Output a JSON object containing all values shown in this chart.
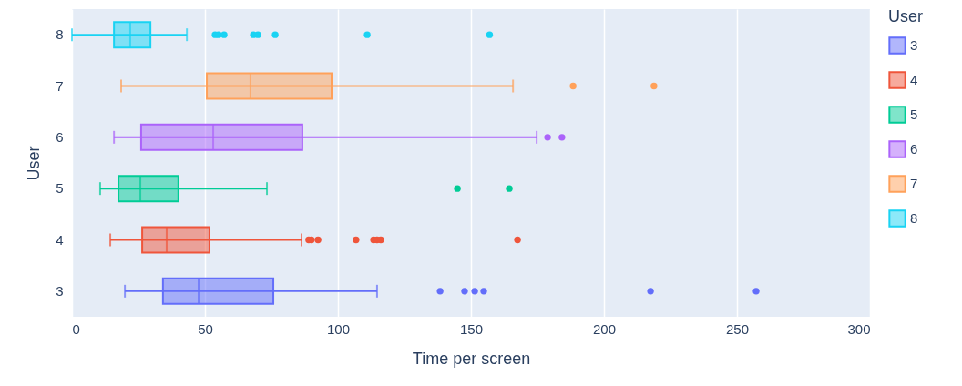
{
  "chart_data": {
    "type": "box",
    "orientation": "horizontal",
    "xlabel": "Time per screen",
    "ylabel": "User",
    "legend_title": "User",
    "legend": "right",
    "grid": "x",
    "categories": [
      "8",
      "7",
      "6",
      "5",
      "4",
      "3"
    ],
    "xlim": [
      0,
      300
    ],
    "xticks": [
      0,
      50,
      100,
      150,
      200,
      250,
      300
    ],
    "series": [
      {
        "name": "3",
        "color": "#636efa",
        "boxes": [
          null,
          null,
          null,
          null,
          null,
          {
            "low": 19.9,
            "q1": 34.2,
            "median": 47.6,
            "q3": 75.7,
            "high": 114.7,
            "outliers": [
              138.4,
              147.6,
              151.4,
              154.8,
              217.5,
              257.2
            ]
          }
        ]
      },
      {
        "name": "4",
        "color": "#ef553b",
        "boxes": [
          null,
          null,
          null,
          null,
          {
            "low": 14.4,
            "q1": 26.4,
            "median": 35.6,
            "q3": 51.7,
            "high": 86.3,
            "outliers": [
              89,
              90,
              92.5,
              106.8,
              113.4,
              114.7,
              116.1,
              167.5
            ]
          },
          null
        ]
      },
      {
        "name": "5",
        "color": "#00cc96",
        "boxes": [
          null,
          null,
          null,
          {
            "low": 10.6,
            "q1": 17.5,
            "median": 25.7,
            "q3": 40,
            "high": 73.3,
            "outliers": [
              144.9,
              164.4
            ]
          },
          null,
          null
        ]
      },
      {
        "name": "6",
        "color": "#ab63fa",
        "boxes": [
          null,
          null,
          {
            "low": 15.8,
            "q1": 26,
            "median": 53.1,
            "q3": 86.6,
            "high": 174.7,
            "outliers": [
              178.8,
              184.2
            ]
          },
          null,
          null,
          null
        ]
      },
      {
        "name": "7",
        "color": "#ffa15a",
        "boxes": [
          null,
          {
            "low": 18.5,
            "q1": 50.7,
            "median": 67.1,
            "q3": 97.6,
            "high": 165.8,
            "outliers": [
              188.4,
              218.8
            ]
          },
          null,
          null,
          null,
          null
        ]
      },
      {
        "name": "8",
        "color": "#19d3f3",
        "boxes": [
          {
            "low": 0,
            "q1": 15.8,
            "median": 21.9,
            "q3": 29.5,
            "high": 43.2,
            "outliers": [
              53.8,
              55.1,
              57.2,
              68.2,
              69.9,
              76.4,
              111,
              157
            ]
          },
          null,
          null,
          null,
          null,
          null
        ]
      }
    ]
  }
}
